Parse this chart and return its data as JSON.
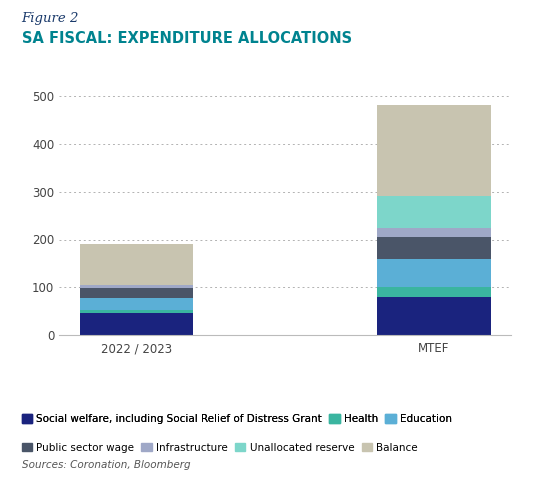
{
  "figure_label": "Figure 2",
  "title": "SA FISCAL: EXPENDITURE ALLOCATIONS",
  "source": "Sources: Coronation, Bloomberg",
  "categories": [
    "2022 / 2023",
    "MTEF"
  ],
  "segments": [
    {
      "label": "Social welfare, including Social Relief of Distress Grant",
      "color": "#1a237e",
      "values": [
        47,
        80
      ]
    },
    {
      "label": "Health",
      "color": "#3ab5a0",
      "values": [
        5,
        20
      ]
    },
    {
      "label": "Education",
      "color": "#5bafd6",
      "values": [
        25,
        60
      ]
    },
    {
      "label": "Public sector wage",
      "color": "#4a5568",
      "values": [
        22,
        45
      ]
    },
    {
      "label": "Infrastructure",
      "color": "#9fa8c7",
      "values": [
        5,
        20
      ]
    },
    {
      "label": "Unallocated reserve",
      "color": "#7dd6ca",
      "values": [
        0,
        65
      ]
    },
    {
      "label": "Balance",
      "color": "#c8c4b0",
      "values": [
        86,
        190
      ]
    }
  ],
  "legend_order_row1": [
    0,
    1,
    2
  ],
  "legend_order_row2": [
    3,
    4,
    5,
    6
  ],
  "ylim": [
    0,
    520
  ],
  "yticks": [
    0,
    100,
    200,
    300,
    400,
    500
  ],
  "bar_width": 0.38,
  "figsize": [
    5.38,
    4.79
  ],
  "dpi": 100,
  "title_color": "#00838f",
  "figure_label_color": "#1a3a6b",
  "background_color": "#ffffff",
  "grid_color": "#aaaaaa",
  "legend_fontsize": 7.5,
  "title_fontsize": 10.5,
  "figure_label_fontsize": 9.5,
  "axis_label_fontsize": 8.5
}
